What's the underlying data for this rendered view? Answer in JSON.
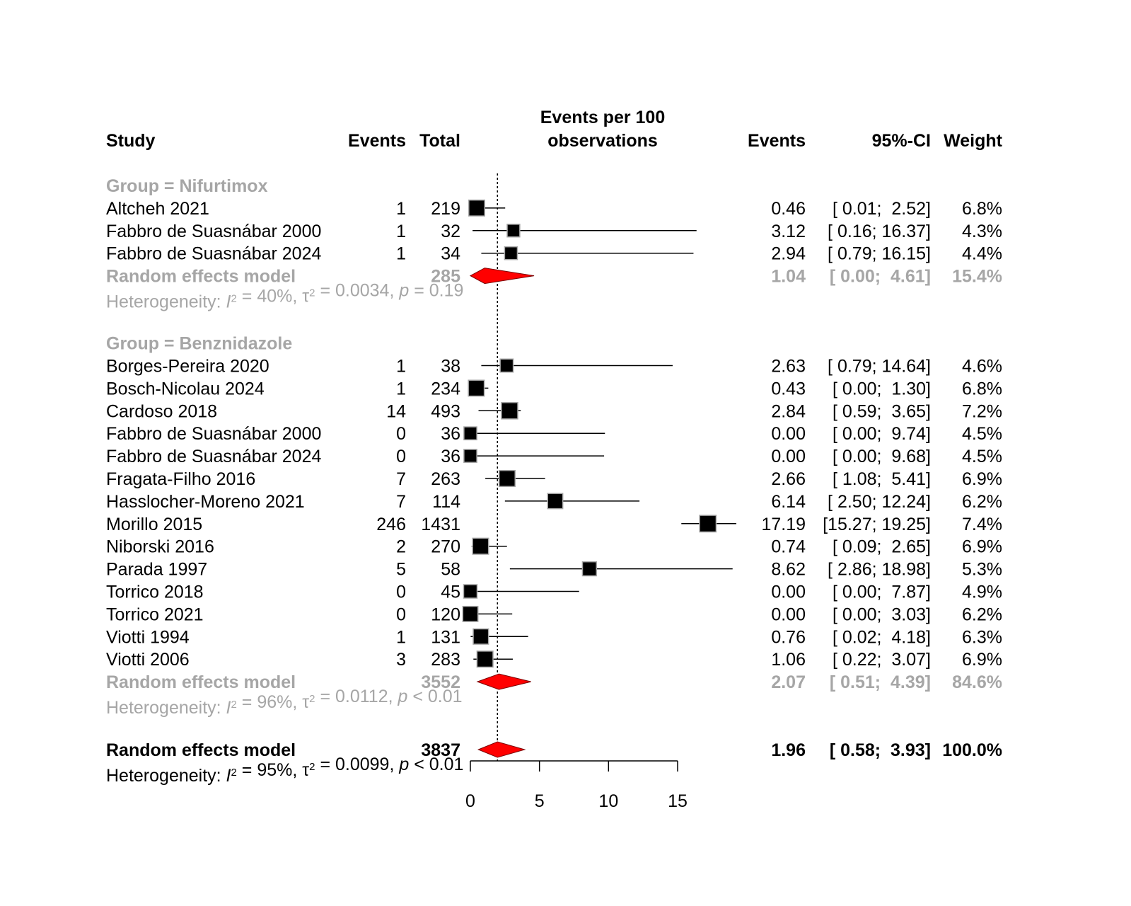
{
  "chart_data": {
    "type": "forest",
    "headers": {
      "study": "Study",
      "events": "Events",
      "total": "Total",
      "plot_line1": "Events per 100",
      "plot_line2": "observations",
      "rate": "Events",
      "ci": "95%-CI",
      "weight": "Weight"
    },
    "xlim": [
      0,
      15
    ],
    "xticks": [
      0,
      5,
      10,
      15
    ],
    "reference_line": 1.96,
    "colors": {
      "square": "#000000",
      "square_border": "#a6a6a6",
      "diamond": "#ff0000",
      "subgroup_text": "#a6a6a6"
    },
    "heterogeneity_label": "Heterogeneity:",
    "groups": [
      {
        "label": "Group = Nifurtimox",
        "studies": [
          {
            "study": "Altcheh 2021",
            "events": "1",
            "total": "219",
            "rate": 0.46,
            "lower": 0.01,
            "upper": 2.52,
            "rate_text": "0.46",
            "ci_text": "[ 0.01;  2.52]",
            "weight": "6.8%"
          },
          {
            "study": "Fabbro de Suasnábar 2000",
            "events": "1",
            "total": "32",
            "rate": 3.12,
            "lower": 0.16,
            "upper": 16.37,
            "rate_text": "3.12",
            "ci_text": "[ 0.16; 16.37]",
            "weight": "4.3%"
          },
          {
            "study": "Fabbro de Suasnábar 2024",
            "events": "1",
            "total": "34",
            "rate": 2.94,
            "lower": 0.79,
            "upper": 16.15,
            "rate_text": "2.94",
            "ci_text": "[ 0.79; 16.15]",
            "weight": "4.4%"
          }
        ],
        "model": {
          "label": "Random effects model",
          "total": "285",
          "rate": 1.04,
          "lower": 0.0,
          "upper": 4.61,
          "rate_text": "1.04",
          "ci_text": "[ 0.00;  4.61]",
          "weight": "15.4%"
        },
        "heterogeneity": {
          "i2": "40%",
          "tau2": "0.0034",
          "p": "= 0.19"
        }
      },
      {
        "label": "Group = Benznidazole",
        "studies": [
          {
            "study": "Borges-Pereira 2020",
            "events": "1",
            "total": "38",
            "rate": 2.63,
            "lower": 0.79,
            "upper": 14.64,
            "rate_text": "2.63",
            "ci_text": "[ 0.79; 14.64]",
            "weight": "4.6%"
          },
          {
            "study": "Bosch-Nicolau 2024",
            "events": "1",
            "total": "234",
            "rate": 0.43,
            "lower": 0.0,
            "upper": 1.3,
            "rate_text": "0.43",
            "ci_text": "[ 0.00;  1.30]",
            "weight": "6.8%"
          },
          {
            "study": "Cardoso 2018",
            "events": "14",
            "total": "493",
            "rate": 2.84,
            "lower": 0.59,
            "upper": 3.65,
            "rate_text": "2.84",
            "ci_text": "[ 0.59;  3.65]",
            "weight": "7.2%"
          },
          {
            "study": "Fabbro de Suasnábar 2000",
            "events": "0",
            "total": "36",
            "rate": 0.0,
            "lower": 0.0,
            "upper": 9.74,
            "rate_text": "0.00",
            "ci_text": "[ 0.00;  9.74]",
            "weight": "4.5%"
          },
          {
            "study": "Fabbro de Suasnábar 2024",
            "events": "0",
            "total": "36",
            "rate": 0.0,
            "lower": 0.0,
            "upper": 9.68,
            "rate_text": "0.00",
            "ci_text": "[ 0.00;  9.68]",
            "weight": "4.5%"
          },
          {
            "study": "Fragata-Filho 2016",
            "events": "7",
            "total": "263",
            "rate": 2.66,
            "lower": 1.08,
            "upper": 5.41,
            "rate_text": "2.66",
            "ci_text": "[ 1.08;  5.41]",
            "weight": "6.9%"
          },
          {
            "study": "Hasslocher-Moreno 2021",
            "events": "7",
            "total": "114",
            "rate": 6.14,
            "lower": 2.5,
            "upper": 12.24,
            "rate_text": "6.14",
            "ci_text": "[ 2.50; 12.24]",
            "weight": "6.2%"
          },
          {
            "study": "Morillo 2015",
            "events": "246",
            "total": "1431",
            "rate": 17.19,
            "lower": 15.27,
            "upper": 19.25,
            "rate_text": "17.19",
            "ci_text": "[15.27; 19.25]",
            "weight": "7.4%"
          },
          {
            "study": "Niborski 2016",
            "events": "2",
            "total": "270",
            "rate": 0.74,
            "lower": 0.09,
            "upper": 2.65,
            "rate_text": "0.74",
            "ci_text": "[ 0.09;  2.65]",
            "weight": "6.9%"
          },
          {
            "study": "Parada 1997",
            "events": "5",
            "total": "58",
            "rate": 8.62,
            "lower": 2.86,
            "upper": 18.98,
            "rate_text": "8.62",
            "ci_text": "[ 2.86; 18.98]",
            "weight": "5.3%"
          },
          {
            "study": "Torrico 2018",
            "events": "0",
            "total": "45",
            "rate": 0.0,
            "lower": 0.0,
            "upper": 7.87,
            "rate_text": "0.00",
            "ci_text": "[ 0.00;  7.87]",
            "weight": "4.9%"
          },
          {
            "study": "Torrico 2021",
            "events": "0",
            "total": "120",
            "rate": 0.0,
            "lower": 0.0,
            "upper": 3.03,
            "rate_text": "0.00",
            "ci_text": "[ 0.00;  3.03]",
            "weight": "6.2%"
          },
          {
            "study": "Viotti 1994",
            "events": "1",
            "total": "131",
            "rate": 0.76,
            "lower": 0.02,
            "upper": 4.18,
            "rate_text": "0.76",
            "ci_text": "[ 0.02;  4.18]",
            "weight": "6.3%"
          },
          {
            "study": "Viotti 2006",
            "events": "3",
            "total": "283",
            "rate": 1.06,
            "lower": 0.22,
            "upper": 3.07,
            "rate_text": "1.06",
            "ci_text": "[ 0.22;  3.07]",
            "weight": "6.9%"
          }
        ],
        "model": {
          "label": "Random effects model",
          "total": "3552",
          "rate": 2.07,
          "lower": 0.51,
          "upper": 4.39,
          "rate_text": "2.07",
          "ci_text": "[ 0.51;  4.39]",
          "weight": "84.6%"
        },
        "heterogeneity": {
          "i2": "96%",
          "tau2": "0.0112",
          "p": "< 0.01"
        }
      }
    ],
    "overall": {
      "model": {
        "label": "Random effects model",
        "total": "3837",
        "rate": 1.96,
        "lower": 0.58,
        "upper": 3.93,
        "rate_text": "1.96",
        "ci_text": "[ 0.58;  3.93]",
        "weight": "100.0%"
      },
      "heterogeneity": {
        "i2": "95%",
        "tau2": "0.0099",
        "p": "< 0.01"
      }
    }
  }
}
